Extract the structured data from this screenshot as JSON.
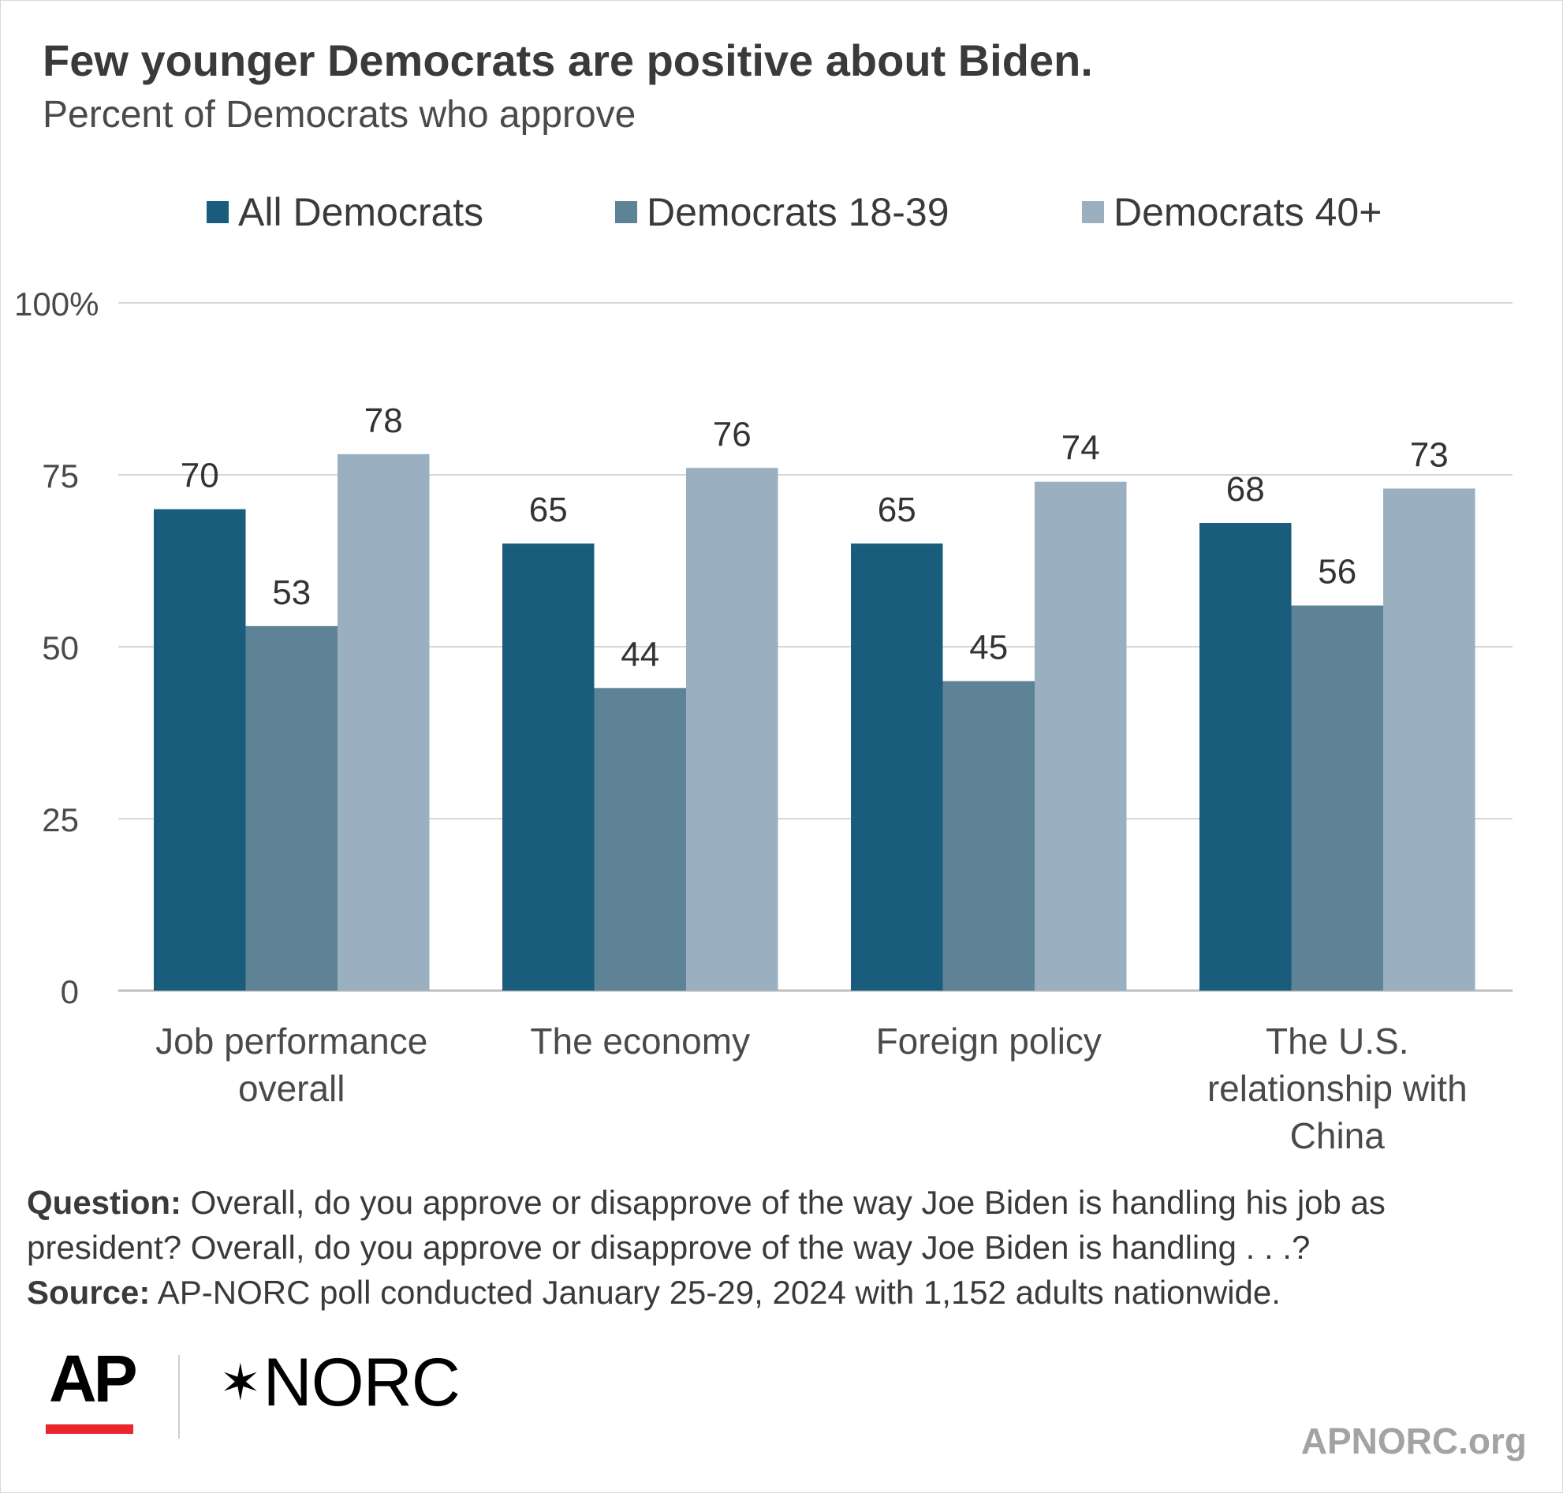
{
  "header": {
    "title": "Few younger Democrats are positive about Biden.",
    "subtitle": "Percent of Democrats who approve"
  },
  "chart_data": {
    "type": "bar",
    "categories": [
      [
        "Job performance",
        "overall"
      ],
      [
        "The economy"
      ],
      [
        "Foreign policy"
      ],
      [
        "The U.S.",
        "relationship with",
        "China"
      ]
    ],
    "series": [
      {
        "name": "All Democrats",
        "color": "#1a5c7c",
        "values": [
          70,
          65,
          65,
          68
        ]
      },
      {
        "name": "Democrats 18-39",
        "color": "#5e8296",
        "values": [
          53,
          44,
          45,
          56
        ]
      },
      {
        "name": "Democrats 40+",
        "color": "#9aafbf",
        "values": [
          78,
          76,
          74,
          73
        ]
      }
    ],
    "ylim": [
      0,
      100
    ],
    "yticks": [
      0,
      25,
      50,
      75,
      100
    ],
    "ytick_labels": [
      "0",
      "25",
      "50",
      "75",
      "100%"
    ],
    "grid": true,
    "legend_position": "top"
  },
  "footer": {
    "question_label": "Question:",
    "question_text": " Overall, do you approve or disapprove of the way Joe Biden is handling his job as president? Overall, do you approve or disapprove of the way Joe Biden is handling . . .?",
    "source_label": "Source:",
    "source_text": " AP-NORC poll conducted January 25-29, 2024 with 1,152 adults nationwide.",
    "logo_ap": "AP",
    "logo_norc_mark": "✶",
    "logo_norc": "NORC",
    "site": "APNORC.org"
  }
}
